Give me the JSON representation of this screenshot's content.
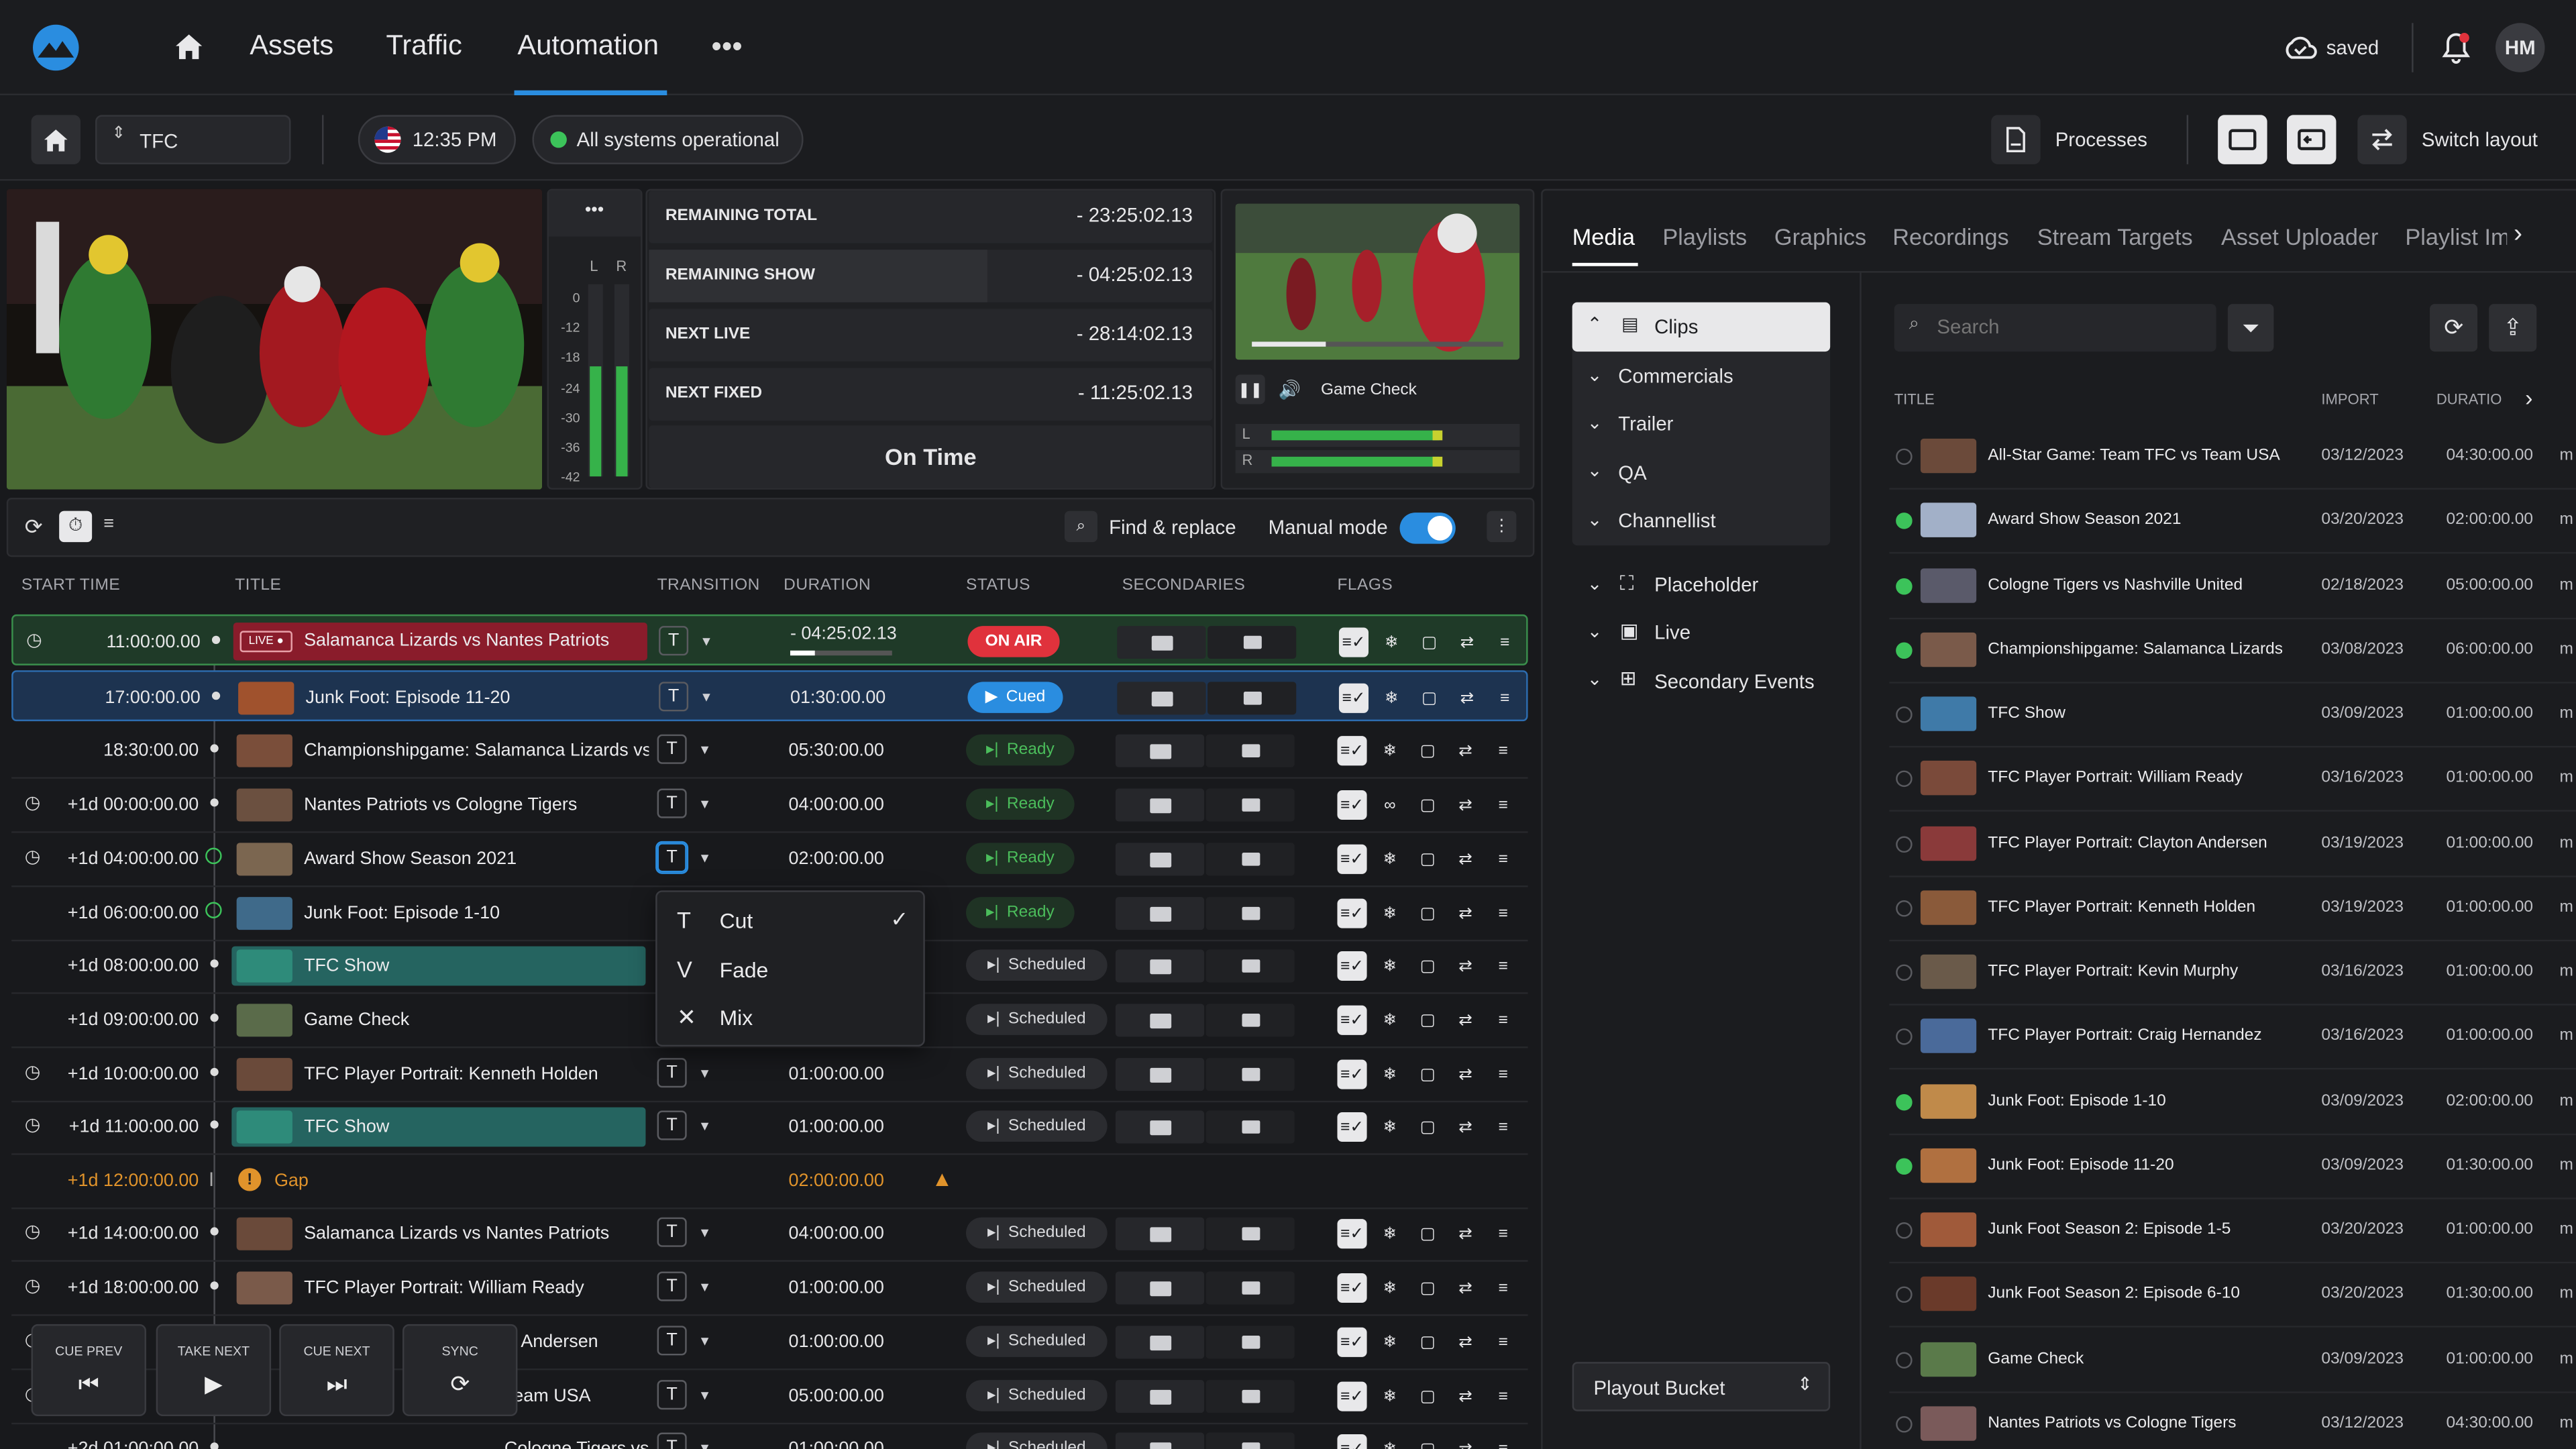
{
  "nav": {
    "tabs": [
      "Assets",
      "Traffic",
      "Automation"
    ],
    "active": "Automation",
    "saved": "saved",
    "user": "HM"
  },
  "subbar": {
    "channel": "TFC",
    "time": "12:35 PM",
    "status": "All systems operational",
    "processes": "Processes",
    "switch_layout": "Switch layout"
  },
  "meters": {
    "labels": [
      "L",
      "R"
    ],
    "scale": [
      "0",
      "-12",
      "-18",
      "-24",
      "-30",
      "-36",
      "-42"
    ]
  },
  "remaining": [
    {
      "label": "REMAINING TOTAL",
      "value": "- 23:25:02.13"
    },
    {
      "label": "REMAINING SHOW",
      "value": "- 04:25:02.13"
    },
    {
      "label": "NEXT LIVE",
      "value": "- 28:14:02.13"
    },
    {
      "label": "NEXT FIXED",
      "value": "- 11:25:02.13"
    }
  ],
  "on_time": "On Time",
  "preview": {
    "title": "Game Check",
    "ch_l": "L",
    "ch_r": "R"
  },
  "toolbar": {
    "find": "Find & replace",
    "manual": "Manual mode"
  },
  "columns": {
    "start": "START TIME",
    "title": "TITLE",
    "transition": "TRANSITION",
    "duration": "DURATION",
    "status": "STATUS",
    "secondaries": "SECONDARIES",
    "flags": "FLAGS"
  },
  "rows": [
    {
      "day": "",
      "time": "11:00:00.00",
      "live": "LIVE",
      "title": "Salamanca Lizards vs Nantes Patriots",
      "dur": "- 04:25:02.13",
      "status": "ON AIR"
    },
    {
      "day": "",
      "time": "17:00:00.00",
      "title": "Junk Foot: Episode 11-20",
      "dur": "01:30:00.00",
      "status": "Cued"
    },
    {
      "day": "",
      "time": "18:30:00.00",
      "title": "Championshipgame: Salamanca Lizards vs Nantes Patriots",
      "dur": "05:30:00.00",
      "status": "Ready"
    },
    {
      "day": "+1d",
      "time": "00:00:00.00",
      "title": "Nantes Patriots vs Cologne Tigers",
      "dur": "04:00:00.00",
      "status": "Ready"
    },
    {
      "day": "+1d",
      "time": "04:00:00.00",
      "title": "Award Show Season 2021",
      "dur": "02:00:00.00",
      "status": "Ready"
    },
    {
      "day": "+1d",
      "time": "06:00:00.00",
      "title": "Junk Foot: Episode 1-10",
      "dur": "",
      "status": "Ready"
    },
    {
      "day": "+1d",
      "time": "08:00:00.00",
      "title": "TFC Show",
      "dur": "",
      "status": "Scheduled"
    },
    {
      "day": "+1d",
      "time": "09:00:00.00",
      "title": "Game Check",
      "dur": "",
      "status": "Scheduled"
    },
    {
      "day": "+1d",
      "time": "10:00:00.00",
      "title": "TFC Player Portrait: Kenneth Holden",
      "dur": "01:00:00.00",
      "status": "Scheduled"
    },
    {
      "day": "+1d",
      "time": "11:00:00.00",
      "title": "TFC Show",
      "dur": "01:00:00.00",
      "status": "Scheduled"
    },
    {
      "day": "+1d",
      "time": "12:00:00.00",
      "title": "Gap",
      "dur": "02:00:00.00",
      "status": ""
    },
    {
      "day": "+1d",
      "time": "14:00:00.00",
      "title": "Salamanca Lizards vs Nantes Patriots",
      "dur": "04:00:00.00",
      "status": "Scheduled"
    },
    {
      "day": "+1d",
      "time": "18:00:00.00",
      "title": "TFC Player Portrait: William Ready",
      "dur": "01:00:00.00",
      "status": "Scheduled"
    },
    {
      "day": "",
      "time": "",
      "title": "Andersen",
      "dur": "01:00:00.00",
      "status": "Scheduled"
    },
    {
      "day": "",
      "time": "",
      "title": "Team USA",
      "dur": "05:00:00.00",
      "status": "Scheduled"
    },
    {
      "day": "+2d",
      "time": "01:00:00.00",
      "title": "Cologne Tigers vs Nashville United",
      "dur": "01:00:00.00",
      "status": "Scheduled"
    }
  ],
  "dropdown": [
    "Cut",
    "Fade",
    "Mix"
  ],
  "controls": [
    "CUE PREV",
    "TAKE NEXT",
    "CUE NEXT",
    "SYNC"
  ],
  "right_tabs": [
    "Media",
    "Playlists",
    "Graphics",
    "Recordings",
    "Stream Targets",
    "Asset Uploader",
    "Playlist Im"
  ],
  "tree": [
    "Clips",
    "Commercials",
    "Trailer",
    "QA",
    "Channellist",
    "Placeholder",
    "Live",
    "Secondary Events"
  ],
  "bucket": "Playout Bucket",
  "search_placeholder": "Search",
  "media_cols": {
    "title": "TITLE",
    "import": "IMPORT",
    "duration": "DURATIO"
  },
  "media": [
    {
      "t": "All-Star Game: Team TFC vs Team USA",
      "d": "03/12/2023",
      "du": "04:30:00.00",
      "g": false
    },
    {
      "t": "Award Show Season 2021",
      "d": "03/20/2023",
      "du": "02:00:00.00",
      "g": true
    },
    {
      "t": "Cologne Tigers vs Nashville United",
      "d": "02/18/2023",
      "du": "05:00:00.00",
      "g": true
    },
    {
      "t": "Championshipgame: Salamanca Lizards",
      "d": "03/08/2023",
      "du": "06:00:00.00",
      "g": true
    },
    {
      "t": "TFC Show",
      "d": "03/09/2023",
      "du": "01:00:00.00",
      "g": false
    },
    {
      "t": "TFC Player Portrait: William Ready",
      "d": "03/16/2023",
      "du": "01:00:00.00",
      "g": false
    },
    {
      "t": "TFC Player Portrait: Clayton Andersen",
      "d": "03/19/2023",
      "du": "01:00:00.00",
      "g": false
    },
    {
      "t": "TFC Player Portrait: Kenneth Holden",
      "d": "03/19/2023",
      "du": "01:00:00.00",
      "g": false
    },
    {
      "t": "TFC Player Portrait: Kevin Murphy",
      "d": "03/16/2023",
      "du": "01:00:00.00",
      "g": false
    },
    {
      "t": "TFC Player Portrait: Craig Hernandez",
      "d": "03/16/2023",
      "du": "01:00:00.00",
      "g": false
    },
    {
      "t": "Junk Foot: Episode 1-10",
      "d": "03/09/2023",
      "du": "02:00:00.00",
      "g": true
    },
    {
      "t": "Junk Foot: Episode 11-20",
      "d": "03/09/2023",
      "du": "01:30:00.00",
      "g": true
    },
    {
      "t": "Junk Foot Season 2: Episode 1-5",
      "d": "03/20/2023",
      "du": "01:00:00.00",
      "g": false
    },
    {
      "t": "Junk Foot Season 2: Episode 6-10",
      "d": "03/20/2023",
      "du": "01:30:00.00",
      "g": false
    },
    {
      "t": "Game Check",
      "d": "03/09/2023",
      "du": "01:00:00.00",
      "g": false
    },
    {
      "t": "Nantes Patriots vs Cologne Tigers",
      "d": "03/12/2023",
      "du": "04:30:00.00",
      "g": false
    }
  ],
  "media_more": "m"
}
